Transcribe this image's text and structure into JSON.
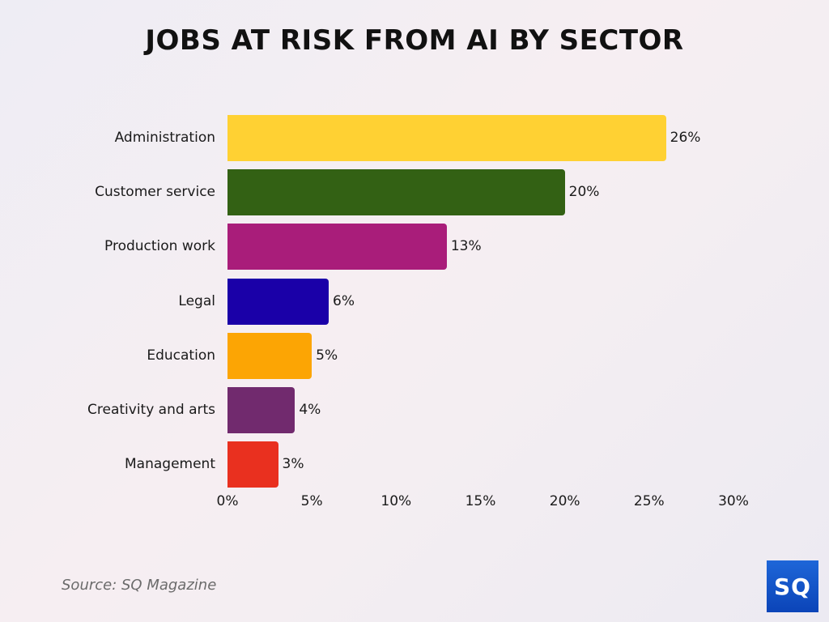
{
  "chart_data": {
    "type": "bar",
    "orientation": "horizontal",
    "title": "JOBS AT RISK FROM AI BY SECTOR",
    "categories": [
      "Administration",
      "Customer service",
      "Production work",
      "Legal",
      "Education",
      "Creativity and arts",
      "Management"
    ],
    "values": [
      26,
      20,
      13,
      6,
      5,
      4,
      3
    ],
    "value_labels": [
      "26%",
      "20%",
      "13%",
      "6%",
      "5%",
      "4%",
      "3%"
    ],
    "colors": [
      "#ffd133",
      "#336114",
      "#a91d7a",
      "#1a00a8",
      "#fca504",
      "#712a6e",
      "#e9301f"
    ],
    "xlabel": "",
    "ylabel": "",
    "xlim": [
      0,
      30
    ],
    "x_ticks": [
      "0%",
      "5%",
      "10%",
      "15%",
      "20%",
      "25%",
      "30%"
    ],
    "grid": false,
    "legend": "none"
  },
  "footer": {
    "source": "Source: SQ Magazine",
    "logo_text": "SQ"
  }
}
